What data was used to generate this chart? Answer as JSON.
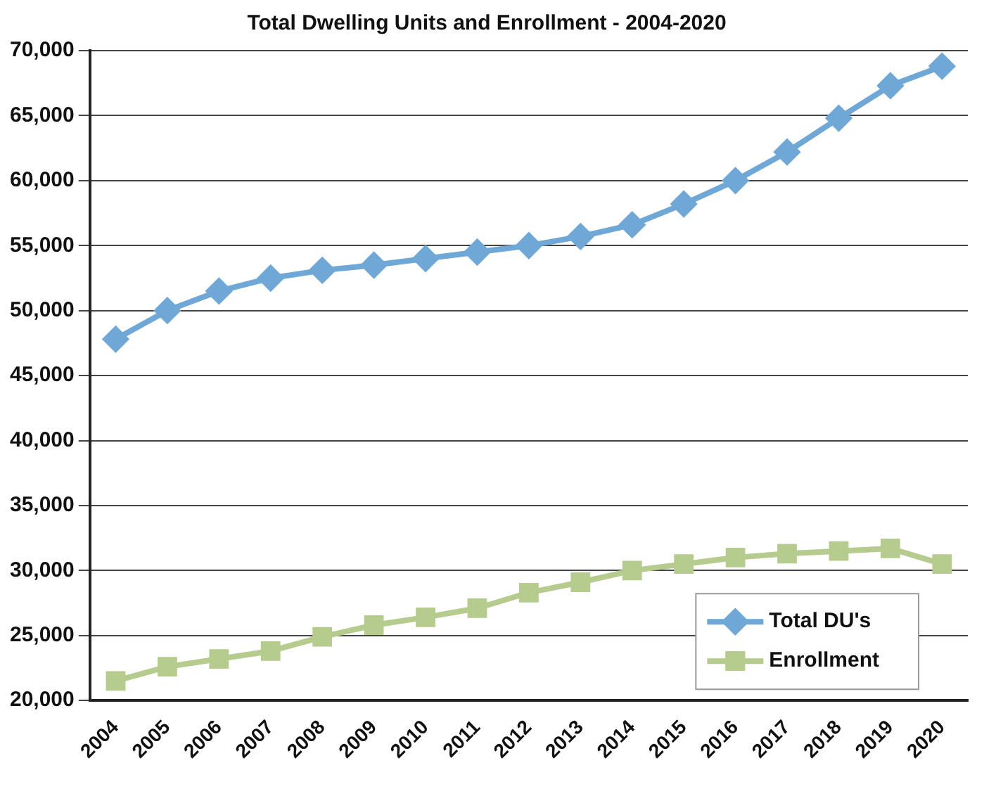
{
  "chart_data": {
    "type": "line",
    "title": "Total Dwelling Units and Enrollment - 2004-2020",
    "categories": [
      "2004",
      "2005",
      "2006",
      "2007",
      "2008",
      "2009",
      "2010",
      "2011",
      "2012",
      "2013",
      "2014",
      "2015",
      "2016",
      "2017",
      "2018",
      "2019",
      "2020"
    ],
    "series": [
      {
        "name": "Total DU's",
        "color": "#6fa8d6",
        "marker": "diamond",
        "values": [
          47800,
          50000,
          51500,
          52500,
          53100,
          53500,
          54000,
          54500,
          55000,
          55700,
          56600,
          58200,
          60000,
          62200,
          64800,
          67300,
          68800
        ]
      },
      {
        "name": "Enrollment",
        "color": "#b5cc8e",
        "marker": "square",
        "values": [
          21500,
          22600,
          23200,
          23800,
          24900,
          25800,
          26400,
          27100,
          28300,
          29100,
          30000,
          30500,
          31000,
          31300,
          31500,
          31700,
          30500
        ]
      }
    ],
    "ylim": [
      20000,
      70000
    ],
    "yticks": [
      {
        "value": 20000,
        "label": "20,000"
      },
      {
        "value": 25000,
        "label": "25,000"
      },
      {
        "value": 30000,
        "label": "30,000"
      },
      {
        "value": 35000,
        "label": "35,000"
      },
      {
        "value": 40000,
        "label": "40,000"
      },
      {
        "value": 45000,
        "label": "45,000"
      },
      {
        "value": 50000,
        "label": "50,000"
      },
      {
        "value": 55000,
        "label": "55,000"
      },
      {
        "value": 60000,
        "label": "60,000"
      },
      {
        "value": 65000,
        "label": "65,000"
      },
      {
        "value": 70000,
        "label": "70,000"
      }
    ],
    "grid": "y",
    "legend": "bottom right"
  }
}
